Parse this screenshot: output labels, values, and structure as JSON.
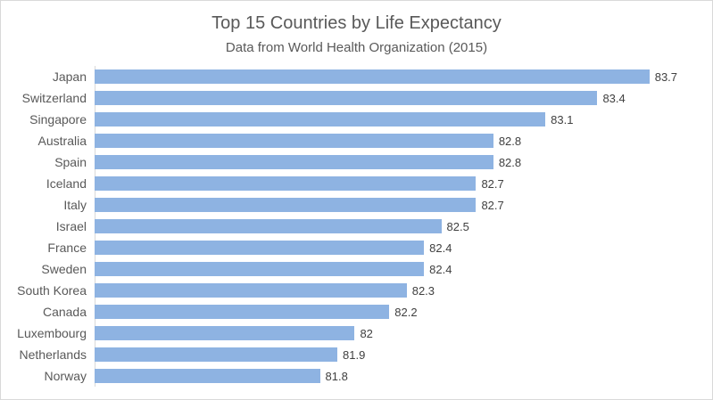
{
  "chart_data": {
    "type": "bar",
    "orientation": "horizontal",
    "title": "Top 15 Countries by Life Expectancy",
    "subtitle": "Data from World Health Organization (2015)",
    "categories": [
      "Japan",
      "Switzerland",
      "Singapore",
      "Australia",
      "Spain",
      "Iceland",
      "Italy",
      "Israel",
      "France",
      "Sweden",
      "South Korea",
      "Canada",
      "Luxembourg",
      "Netherlands",
      "Norway"
    ],
    "values": [
      83.7,
      83.4,
      83.1,
      82.8,
      82.8,
      82.7,
      82.7,
      82.5,
      82.4,
      82.4,
      82.3,
      82.2,
      82,
      81.9,
      81.8
    ],
    "data_labels": [
      "83.7",
      "83.4",
      "83.1",
      "82.8",
      "82.8",
      "82.7",
      "82.7",
      "82.5",
      "82.4",
      "82.4",
      "82.3",
      "82.2",
      "82",
      "81.9",
      "81.8"
    ],
    "xlabel": "",
    "ylabel": "",
    "xlim": [
      80.5,
      84
    ],
    "grid": false,
    "legend": false,
    "colors": {
      "bar": "#8eb3e2",
      "axis_line": "#d9d9d9",
      "chart_border": "#d9d9d9",
      "text": "#595959",
      "value_label": "#404040",
      "background": "#ffffff"
    }
  }
}
